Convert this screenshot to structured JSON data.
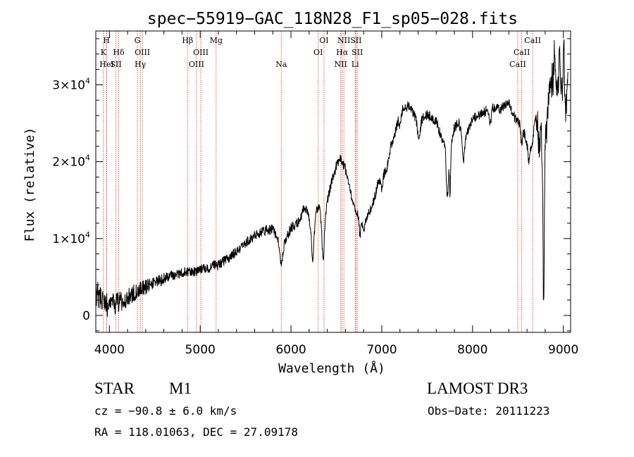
{
  "chart_data": {
    "type": "line",
    "title": "spec−55919−GAC_118N28_F1_sp05−028.fits",
    "xlabel": "Wavelength (Å)",
    "ylabel": "Flux (relative)",
    "xlim": [
      3850,
      9080
    ],
    "ylim": [
      -2200,
      37000
    ],
    "xticks": [
      4000,
      5000,
      6000,
      7000,
      8000,
      9000
    ],
    "xtick_labels": [
      "4000",
      "5000",
      "6000",
      "7000",
      "8000",
      "9000"
    ],
    "yticks": [
      0,
      10000,
      20000,
      30000
    ],
    "ytick_labels": [
      {
        "mant": "0",
        "exp": ""
      },
      {
        "mant": "1×10",
        "exp": "4"
      },
      {
        "mant": "2×10",
        "exp": "4"
      },
      {
        "mant": "3×10",
        "exp": "4"
      }
    ],
    "line_color": "#d12020",
    "lines": [
      {
        "wave": 3934,
        "label": "K",
        "row": 1
      },
      {
        "wave": 3968,
        "label": "H",
        "row": 0
      },
      {
        "wave": 3970,
        "label": "HeI",
        "row": 2
      },
      {
        "wave": 4072,
        "label": "SII",
        "row": 2
      },
      {
        "wave": 4102,
        "label": "Hδ",
        "row": 1
      },
      {
        "wave": 4308,
        "label": "G",
        "row": 0
      },
      {
        "wave": 4340,
        "label": "Hγ",
        "row": 2
      },
      {
        "wave": 4363,
        "label": "OIII",
        "row": 1
      },
      {
        "wave": 4861,
        "label": "Hβ",
        "row": 0
      },
      {
        "wave": 4959,
        "label": "OIII",
        "row": 2
      },
      {
        "wave": 5007,
        "label": "OIII",
        "row": 1
      },
      {
        "wave": 5175,
        "label": "Mg",
        "row": 0
      },
      {
        "wave": 5893,
        "label": "Na",
        "row": 2
      },
      {
        "wave": 6300,
        "label": "OI",
        "row": 1
      },
      {
        "wave": 6364,
        "label": "OI",
        "row": 0
      },
      {
        "wave": 6548,
        "label": "NII",
        "row": 2
      },
      {
        "wave": 6563,
        "label": "Hα",
        "row": 1
      },
      {
        "wave": 6583,
        "label": "NII",
        "row": 0
      },
      {
        "wave": 6707,
        "label": "Li",
        "row": 2
      },
      {
        "wave": 6716,
        "label": "SII",
        "row": 0
      },
      {
        "wave": 6731,
        "label": "SII",
        "row": 1
      },
      {
        "wave": 8498,
        "label": "CaII",
        "row": 2
      },
      {
        "wave": 8542,
        "label": "CaII",
        "row": 1
      },
      {
        "wave": 8662,
        "label": "CaII",
        "row": 0
      }
    ],
    "spectrum": {
      "anchors": [
        [
          3850,
          3000
        ],
        [
          3900,
          2200
        ],
        [
          3960,
          1400
        ],
        [
          4000,
          1300
        ],
        [
          4080,
          1600
        ],
        [
          4200,
          2200
        ],
        [
          4300,
          3200
        ],
        [
          4400,
          3700
        ],
        [
          4500,
          4200
        ],
        [
          4600,
          4800
        ],
        [
          4700,
          5200
        ],
        [
          4800,
          5600
        ],
        [
          4900,
          5600
        ],
        [
          5000,
          5900
        ],
        [
          5100,
          6200
        ],
        [
          5150,
          6700
        ],
        [
          5200,
          6500
        ],
        [
          5300,
          7400
        ],
        [
          5400,
          8400
        ],
        [
          5500,
          9400
        ],
        [
          5600,
          10400
        ],
        [
          5700,
          11000
        ],
        [
          5800,
          11200
        ],
        [
          5860,
          9600
        ],
        [
          5893,
          6600
        ],
        [
          5930,
          9600
        ],
        [
          6000,
          11400
        ],
        [
          6100,
          12400
        ],
        [
          6150,
          14200
        ],
        [
          6200,
          12800
        ],
        [
          6240,
          9700
        ],
        [
          6270,
          13000
        ],
        [
          6300,
          14200
        ],
        [
          6340,
          13100
        ],
        [
          6360,
          10700
        ],
        [
          6400,
          15000
        ],
        [
          6450,
          17400
        ],
        [
          6500,
          19400
        ],
        [
          6550,
          20400
        ],
        [
          6600,
          19000
        ],
        [
          6650,
          16200
        ],
        [
          6700,
          14000
        ],
        [
          6780,
          12600
        ],
        [
          6800,
          11300
        ],
        [
          6850,
          13200
        ],
        [
          6900,
          14300
        ],
        [
          6950,
          16800
        ],
        [
          7000,
          19000
        ],
        [
          7050,
          18700
        ],
        [
          7100,
          22000
        ],
        [
          7150,
          24000
        ],
        [
          7200,
          26500
        ],
        [
          7300,
          27400
        ],
        [
          7400,
          25000
        ],
        [
          7500,
          26200
        ],
        [
          7600,
          25200
        ],
        [
          7650,
          23500
        ],
        [
          7700,
          22100
        ],
        [
          7730,
          19200
        ],
        [
          7760,
          22000
        ],
        [
          7800,
          24500
        ],
        [
          7850,
          25000
        ],
        [
          7900,
          22800
        ],
        [
          7950,
          24200
        ],
        [
          8000,
          25500
        ],
        [
          8100,
          26200
        ],
        [
          8200,
          27000
        ],
        [
          8300,
          26800
        ],
        [
          8400,
          27500
        ],
        [
          8450,
          26000
        ],
        [
          8520,
          24800
        ],
        [
          8560,
          24000
        ],
        [
          8600,
          22500
        ],
        [
          8650,
          21800
        ],
        [
          8680,
          24500
        ],
        [
          8720,
          26800
        ],
        [
          8750,
          25000
        ],
        [
          8780,
          18000
        ],
        [
          8800,
          22000
        ],
        [
          8840,
          28000
        ],
        [
          8880,
          31000
        ],
        [
          8900,
          28000
        ],
        [
          8950,
          29500
        ],
        [
          9000,
          28500
        ],
        [
          9030,
          27000
        ],
        [
          9050,
          30000
        ]
      ],
      "dips": [
        [
          6350,
          4000,
          12
        ],
        [
          6240,
          2600,
          14
        ],
        [
          6760,
          2600,
          10
        ],
        [
          7000,
          2300,
          14
        ],
        [
          7200,
          2000,
          10
        ],
        [
          7410,
          2400,
          12
        ],
        [
          7720,
          4600,
          10
        ],
        [
          7752,
          5200,
          6
        ],
        [
          7900,
          2600,
          12
        ],
        [
          8194,
          2200,
          10
        ],
        [
          8542,
          2600,
          8
        ],
        [
          8620,
          2000,
          10
        ],
        [
          8784,
          18000,
          6
        ],
        [
          8730,
          4000,
          10
        ]
      ],
      "spikes": [
        [
          8905,
          7500,
          8
        ],
        [
          8960,
          6000,
          8
        ],
        [
          9005,
          7000,
          6
        ]
      ],
      "noise_blue": 1700,
      "noise_red": 650,
      "sample_step": 3,
      "seed": 55919
    }
  },
  "info": {
    "object_class": "STAR",
    "subclass": "M1",
    "survey": "LAMOST DR3",
    "cz": "cz = −90.8 ± 6.0 km/s",
    "obs_date": "Obs−Date: 20111223",
    "coords": "RA = 118.01063, DEC =  27.09178"
  }
}
